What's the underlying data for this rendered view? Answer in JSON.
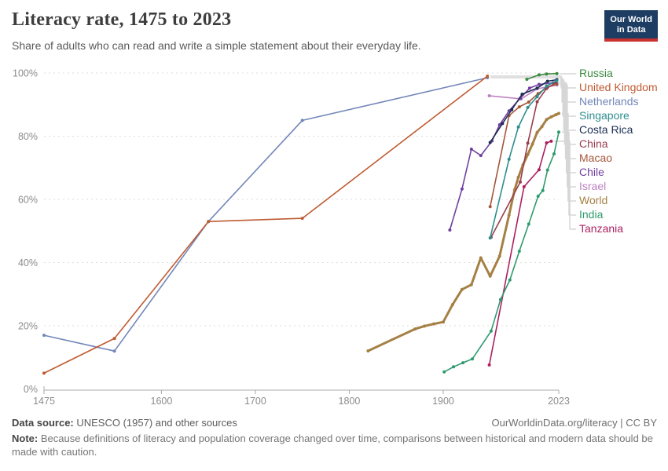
{
  "header": {
    "title": "Literacy rate, 1475 to 2023",
    "subtitle": "Share of adults who can read and write a simple statement about their everyday life.",
    "logo": {
      "line1": "Our World",
      "line2": "in Data",
      "bg": "#1d3d63",
      "stripe": "#c7322e"
    }
  },
  "footer": {
    "source_label": "Data source:",
    "source_text": " UNESCO (1957) and other sources",
    "link_text": "OurWorldinData.org/literacy | CC BY",
    "note_label": "Note:",
    "note_text": " Because definitions of literacy and population coverage changed over time, comparisons between historical and modern data should be made with caution."
  },
  "colors": {
    "grid": "#dcdcdc",
    "axis": "#a8a8a8",
    "tick_label": "#8c8c8c",
    "leader": "#d6d6d6"
  },
  "chart_data": {
    "type": "line",
    "title": "Literacy rate, 1475 to 2023",
    "xlabel": "",
    "ylabel": "",
    "xlim": [
      1475,
      2023
    ],
    "ylim": [
      0,
      100
    ],
    "x_ticks": [
      1475,
      1600,
      1700,
      1800,
      1900,
      2023
    ],
    "y_ticks": [
      0,
      20,
      40,
      60,
      80,
      100
    ],
    "y_tick_suffix": "%",
    "grid": "dashed-horizontal",
    "legend_position": "right",
    "markers": true,
    "series": [
      {
        "name": "Russia",
        "color": "#3c8a40",
        "width": 1.6,
        "points": [
          [
            1989,
            98.0
          ],
          [
            2002,
            99.4
          ],
          [
            2010,
            99.7
          ],
          [
            2021,
            99.8
          ]
        ]
      },
      {
        "name": "United Kingdom",
        "color": "#bf5b32",
        "width": 1.6,
        "points": [
          [
            1475,
            5
          ],
          [
            1550,
            16
          ],
          [
            1650,
            53
          ],
          [
            1750,
            54
          ],
          [
            1947,
            99
          ]
        ]
      },
      {
        "name": "Netherlands",
        "color": "#7286b8",
        "width": 1.6,
        "points": [
          [
            1475,
            17
          ],
          [
            1550,
            12
          ],
          [
            1650,
            53
          ],
          [
            1750,
            85
          ],
          [
            1947,
            98.5
          ]
        ]
      },
      {
        "name": "Singapore",
        "color": "#2e8e8e",
        "width": 1.6,
        "points": [
          [
            1950,
            47.8
          ],
          [
            1970,
            72.7
          ],
          [
            1980,
            82.9
          ],
          [
            1990,
            89.1
          ],
          [
            2000,
            92.5
          ],
          [
            2010,
            95.9
          ],
          [
            2021,
            97.6
          ]
        ]
      },
      {
        "name": "Costa Rica",
        "color": "#1d2f54",
        "width": 1.6,
        "points": [
          [
            1950,
            78
          ],
          [
            1963,
            84
          ],
          [
            1973,
            88.4
          ],
          [
            1984,
            93.3
          ],
          [
            2000,
            95.2
          ],
          [
            2011,
            97.4
          ],
          [
            2021,
            97.9
          ]
        ]
      },
      {
        "name": "China",
        "color": "#9a3e4f",
        "width": 1.6,
        "points": [
          [
            1951,
            48
          ],
          [
            1982,
            65.5
          ],
          [
            1990,
            77.8
          ],
          [
            2000,
            90.9
          ],
          [
            2010,
            95.1
          ],
          [
            2020,
            97
          ]
        ]
      },
      {
        "name": "Macao",
        "color": "#a3573b",
        "width": 1.6,
        "points": [
          [
            1950,
            57.7
          ],
          [
            1970,
            86.5
          ],
          [
            1981,
            89.3
          ],
          [
            1991,
            90.8
          ],
          [
            2001,
            93.5
          ],
          [
            2011,
            95.5
          ],
          [
            2021,
            96.5
          ]
        ]
      },
      {
        "name": "Chile",
        "color": "#7040a0",
        "width": 1.6,
        "points": [
          [
            1907,
            50.3
          ],
          [
            1920,
            63.3
          ],
          [
            1930,
            75.9
          ],
          [
            1940,
            73.9
          ],
          [
            1952,
            78.5
          ],
          [
            1960,
            83.6
          ],
          [
            1970,
            88
          ],
          [
            1982,
            92
          ],
          [
            1992,
            95.2
          ],
          [
            2002,
            96.4
          ],
          [
            2017,
            96.9
          ]
        ]
      },
      {
        "name": "Israel",
        "color": "#bc80c2",
        "width": 1.6,
        "points": [
          [
            1949,
            92.8
          ],
          [
            1983,
            91.8
          ],
          [
            2000,
            95
          ],
          [
            2021,
            96.2
          ]
        ]
      },
      {
        "name": "World",
        "color": "#a58044",
        "width": 3,
        "points": [
          [
            1820,
            12.05
          ],
          [
            1870,
            18.97
          ],
          [
            1880,
            19.9
          ],
          [
            1890,
            20.6
          ],
          [
            1900,
            21.2
          ],
          [
            1910,
            26.7
          ],
          [
            1920,
            31.5
          ],
          [
            1930,
            33
          ],
          [
            1940,
            41.5
          ],
          [
            1950,
            35.7
          ],
          [
            1960,
            42
          ],
          [
            1970,
            55
          ],
          [
            1976,
            63
          ],
          [
            1980,
            67
          ],
          [
            1985,
            71
          ],
          [
            1990,
            74.2
          ],
          [
            1995,
            77.5
          ],
          [
            2000,
            81.2
          ],
          [
            2005,
            83
          ],
          [
            2010,
            85.3
          ],
          [
            2015,
            86.1
          ],
          [
            2020,
            86.8
          ],
          [
            2023,
            87.2
          ]
        ]
      },
      {
        "name": "India",
        "color": "#2f9a6e",
        "width": 1.6,
        "points": [
          [
            1901,
            5.4
          ],
          [
            1911,
            7
          ],
          [
            1921,
            8.3
          ],
          [
            1931,
            9.5
          ],
          [
            1951,
            18.3
          ],
          [
            1961,
            28.3
          ],
          [
            1971,
            34.5
          ],
          [
            1981,
            43.6
          ],
          [
            1991,
            52.2
          ],
          [
            2001,
            61
          ],
          [
            2006,
            62.8
          ],
          [
            2011,
            69.3
          ],
          [
            2018,
            74.4
          ],
          [
            2023,
            81.3
          ]
        ]
      },
      {
        "name": "Tanzania",
        "color": "#ab2060",
        "width": 1.6,
        "points": [
          [
            1949,
            7.6
          ],
          [
            1986,
            64
          ],
          [
            2002,
            69.4
          ],
          [
            2010,
            77.9
          ],
          [
            2015,
            78.4
          ]
        ]
      }
    ]
  }
}
